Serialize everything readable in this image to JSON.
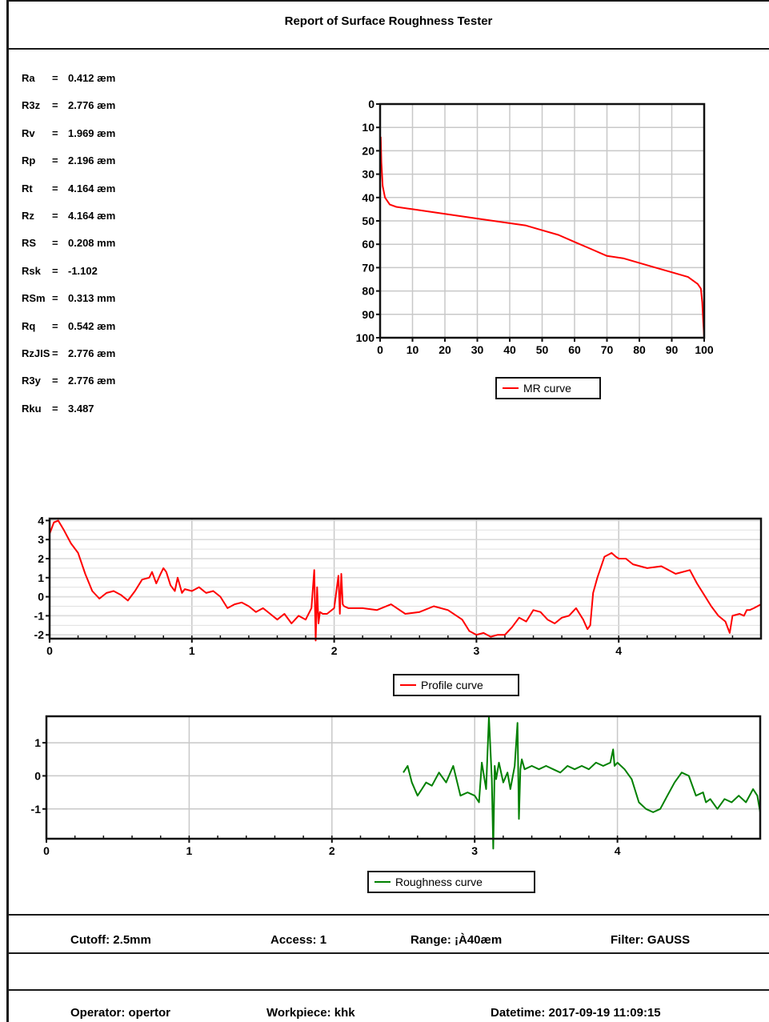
{
  "report": {
    "title": "Report of Surface Roughness Tester"
  },
  "parameters": [
    {
      "name": "Ra",
      "eq": "=",
      "value": "0.412 æm"
    },
    {
      "name": "R3z",
      "eq": "=",
      "value": "2.776 æm"
    },
    {
      "name": "Rv",
      "eq": "=",
      "value": "1.969 æm"
    },
    {
      "name": "Rp",
      "eq": "=",
      "value": "2.196 æm"
    },
    {
      "name": "Rt",
      "eq": "=",
      "value": "4.164 æm"
    },
    {
      "name": "Rz",
      "eq": "=",
      "value": "4.164 æm"
    },
    {
      "name": "RS",
      "eq": "=",
      "value": "0.208 mm"
    },
    {
      "name": "Rsk",
      "eq": "=",
      "value": "-1.102"
    },
    {
      "name": "RSm",
      "eq": "=",
      "value": "0.313 mm"
    },
    {
      "name": "Rq",
      "eq": "=",
      "value": "0.542 æm"
    },
    {
      "name": "RzJIS",
      "eq": "=",
      "value": "2.776 æm"
    },
    {
      "name": "R3y",
      "eq": "=",
      "value": "2.776 æm"
    },
    {
      "name": "Rku",
      "eq": "=",
      "value": "3.487"
    }
  ],
  "chart_data": [
    {
      "type": "line",
      "series": [
        {
          "name": "MR curve",
          "color": "#ff0000",
          "x": [
            0.2,
            0.4,
            0.8,
            1.5,
            3,
            5,
            10,
            20,
            30,
            40,
            45,
            50,
            55,
            60,
            65,
            70,
            75,
            80,
            85,
            90,
            95,
            98,
            99,
            99.4,
            99.7,
            100
          ],
          "y": [
            14,
            25,
            35,
            40,
            43,
            44,
            45,
            47,
            49,
            51,
            52,
            54,
            56,
            59,
            62,
            65,
            66,
            68,
            70,
            72,
            74,
            77,
            79,
            85,
            93,
            100
          ]
        }
      ],
      "xlim": [
        0,
        100
      ],
      "ylim": [
        0,
        100
      ],
      "y_inverted": true,
      "xticks": [
        "0",
        "10",
        "20",
        "30",
        "40",
        "50",
        "60",
        "70",
        "80",
        "90",
        "100"
      ],
      "yticks": [
        "0",
        "10",
        "20",
        "30",
        "40",
        "50",
        "60",
        "70",
        "80",
        "90",
        "100"
      ],
      "grid": true,
      "legend": "bottom"
    },
    {
      "type": "line",
      "series": [
        {
          "name": "Profile curve",
          "color": "#ff0000",
          "x": [
            0,
            0.03,
            0.06,
            0.1,
            0.15,
            0.2,
            0.25,
            0.3,
            0.35,
            0.4,
            0.45,
            0.5,
            0.55,
            0.6,
            0.65,
            0.7,
            0.72,
            0.75,
            0.78,
            0.8,
            0.82,
            0.85,
            0.88,
            0.9,
            0.93,
            0.95,
            1.0,
            1.05,
            1.1,
            1.15,
            1.2,
            1.25,
            1.3,
            1.35,
            1.4,
            1.45,
            1.5,
            1.55,
            1.6,
            1.65,
            1.7,
            1.75,
            1.8,
            1.84,
            1.86,
            1.87,
            1.88,
            1.89,
            1.9,
            1.92,
            1.95,
            2.0,
            2.03,
            2.04,
            2.05,
            2.06,
            2.07,
            2.1,
            2.2,
            2.3,
            2.4,
            2.5,
            2.6,
            2.7,
            2.8,
            2.9,
            2.95,
            3.0,
            3.05,
            3.1,
            3.15,
            3.2,
            3.25,
            3.3,
            3.35,
            3.4,
            3.45,
            3.5,
            3.55,
            3.6,
            3.65,
            3.7,
            3.75,
            3.78,
            3.8,
            3.82,
            3.85,
            3.9,
            3.95,
            3.98,
            4.0,
            4.05,
            4.1,
            4.2,
            4.3,
            4.4,
            4.5,
            4.55,
            4.6,
            4.65,
            4.7,
            4.75,
            4.78,
            4.8,
            4.85,
            4.88,
            4.9,
            4.92,
            4.95,
            5.0
          ],
          "y": [
            3.3,
            3.9,
            4.0,
            3.5,
            2.8,
            2.3,
            1.2,
            0.3,
            -0.1,
            0.2,
            0.3,
            0.1,
            -0.2,
            0.3,
            0.9,
            1.0,
            1.3,
            0.7,
            1.2,
            1.5,
            1.3,
            0.6,
            0.3,
            1.0,
            0.2,
            0.4,
            0.3,
            0.5,
            0.2,
            0.3,
            0.0,
            -0.6,
            -0.4,
            -0.3,
            -0.5,
            -0.8,
            -0.6,
            -0.9,
            -1.2,
            -0.9,
            -1.4,
            -1.0,
            -1.2,
            -0.6,
            1.4,
            -2.3,
            0.5,
            -1.4,
            -0.8,
            -0.9,
            -0.9,
            -0.6,
            1.1,
            -0.9,
            1.2,
            -0.4,
            -0.5,
            -0.6,
            -0.6,
            -0.7,
            -0.4,
            -0.9,
            -0.8,
            -0.5,
            -0.7,
            -1.2,
            -1.8,
            -2.0,
            -1.9,
            -2.1,
            -2.0,
            -2.0,
            -1.6,
            -1.1,
            -1.3,
            -0.7,
            -0.8,
            -1.2,
            -1.4,
            -1.1,
            -1.0,
            -0.6,
            -1.2,
            -1.7,
            -1.5,
            0.2,
            1.0,
            2.1,
            2.3,
            2.1,
            2.0,
            2.0,
            1.7,
            1.5,
            1.6,
            1.2,
            1.4,
            0.7,
            0.1,
            -0.5,
            -1.0,
            -1.3,
            -1.9,
            -1.0,
            -0.9,
            -1.0,
            -0.7,
            -0.7,
            -0.6,
            -0.4
          ]
        }
      ],
      "xlim": [
        0,
        5
      ],
      "ylim": [
        -2.2,
        4.1
      ],
      "xticks": [
        "0",
        "1",
        "2",
        "3",
        "4"
      ],
      "yticks": [
        "4",
        "3",
        "2",
        "1",
        "0",
        "-1",
        "-2"
      ],
      "grid": true,
      "legend": "bottom"
    },
    {
      "type": "line",
      "series": [
        {
          "name": "Roughness curve",
          "color": "#008000",
          "x": [
            2.5,
            2.53,
            2.56,
            2.6,
            2.63,
            2.66,
            2.7,
            2.75,
            2.8,
            2.85,
            2.9,
            2.95,
            3.0,
            3.03,
            3.05,
            3.08,
            3.1,
            3.12,
            3.13,
            3.14,
            3.15,
            3.17,
            3.2,
            3.23,
            3.25,
            3.28,
            3.3,
            3.31,
            3.32,
            3.33,
            3.35,
            3.4,
            3.45,
            3.5,
            3.55,
            3.6,
            3.65,
            3.7,
            3.75,
            3.8,
            3.85,
            3.9,
            3.95,
            3.97,
            3.98,
            4.0,
            4.05,
            4.1,
            4.15,
            4.2,
            4.25,
            4.3,
            4.35,
            4.4,
            4.45,
            4.5,
            4.55,
            4.6,
            4.62,
            4.65,
            4.7,
            4.75,
            4.8,
            4.85,
            4.9,
            4.95,
            4.98,
            5.0
          ],
          "y": [
            0.1,
            0.3,
            -0.2,
            -0.6,
            -0.4,
            -0.2,
            -0.3,
            0.1,
            -0.2,
            0.3,
            -0.6,
            -0.5,
            -0.6,
            -0.8,
            0.4,
            -0.4,
            1.8,
            -0.1,
            -2.2,
            0.3,
            -0.1,
            0.4,
            -0.2,
            0.1,
            -0.4,
            0.3,
            1.6,
            -1.3,
            0.2,
            0.5,
            0.2,
            0.3,
            0.2,
            0.3,
            0.2,
            0.1,
            0.3,
            0.2,
            0.3,
            0.2,
            0.4,
            0.3,
            0.4,
            0.8,
            0.3,
            0.4,
            0.2,
            -0.1,
            -0.8,
            -1.0,
            -1.1,
            -1.0,
            -0.6,
            -0.2,
            0.1,
            0.0,
            -0.6,
            -0.5,
            -0.8,
            -0.7,
            -1.0,
            -0.7,
            -0.8,
            -0.6,
            -0.8,
            -0.4,
            -0.6,
            -1.1
          ]
        }
      ],
      "xlim": [
        0,
        5
      ],
      "ylim": [
        -1.9,
        1.8
      ],
      "xticks": [
        "0",
        "1",
        "2",
        "3",
        "4"
      ],
      "yticks": [
        "1",
        "0",
        "-1"
      ],
      "grid": true,
      "legend": "bottom"
    }
  ],
  "footer": {
    "cutoff": "Cutoff: 2.5mm",
    "access": "Access: 1",
    "range": "Range: ¡À40æm",
    "filter": "Filter: GAUSS",
    "operator": "Operator: opertor",
    "workpiece": "Workpiece: khk",
    "datetime": "Datetime: 2017-09-19 11:09:15"
  }
}
